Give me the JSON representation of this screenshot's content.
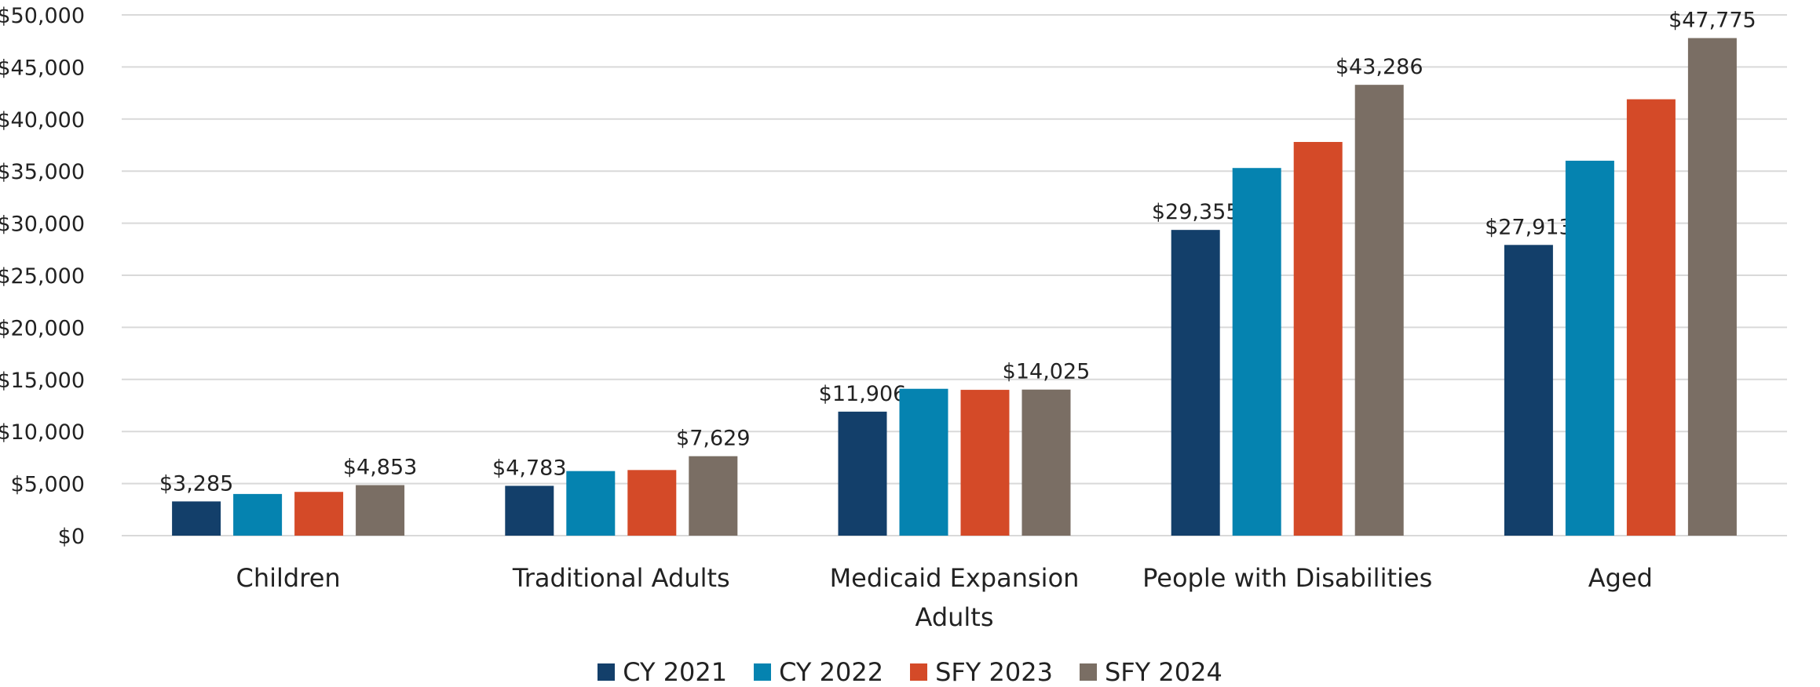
{
  "chart_data": {
    "type": "bar",
    "categories": [
      "Children",
      "Traditional Adults",
      "Medicaid Expansion Adults",
      "People with Disabilities",
      "Aged"
    ],
    "series": [
      {
        "name": "CY 2021",
        "color": "#133f6a",
        "values": [
          3285,
          4783,
          11906,
          29355,
          27913
        ],
        "value_labels": [
          "$3,285",
          "$4,783",
          "$11,906",
          "$29,355",
          "$27,913"
        ]
      },
      {
        "name": "CY 2022",
        "color": "#0583b0",
        "values": [
          4000,
          6200,
          14100,
          35300,
          36000
        ]
      },
      {
        "name": "SFY 2023",
        "color": "#d44a28",
        "values": [
          4200,
          6300,
          14000,
          37800,
          41900
        ]
      },
      {
        "name": "SFY 2024",
        "color": "#7a6e64",
        "values": [
          4853,
          7629,
          14025,
          43286,
          47775
        ],
        "value_labels": [
          "$4,853",
          "$7,629",
          "$14,025",
          "$43,286",
          "$47,775"
        ]
      }
    ],
    "ylim": [
      0,
      50000
    ],
    "yticks": [
      {
        "value": 0,
        "label": "$0"
      },
      {
        "value": 5000,
        "label": "$5,000"
      },
      {
        "value": 10000,
        "label": "$10,000"
      },
      {
        "value": 15000,
        "label": "$15,000"
      },
      {
        "value": 20000,
        "label": "$20,000"
      },
      {
        "value": 25000,
        "label": "$25,000"
      },
      {
        "value": 30000,
        "label": "$30,000"
      },
      {
        "value": 35000,
        "label": "$35,000"
      },
      {
        "value": 40000,
        "label": "$40,000"
      },
      {
        "value": 45000,
        "label": "$45,000"
      },
      {
        "value": 50000,
        "label": "$50,000"
      }
    ],
    "grid": true,
    "legend": "bottom"
  }
}
